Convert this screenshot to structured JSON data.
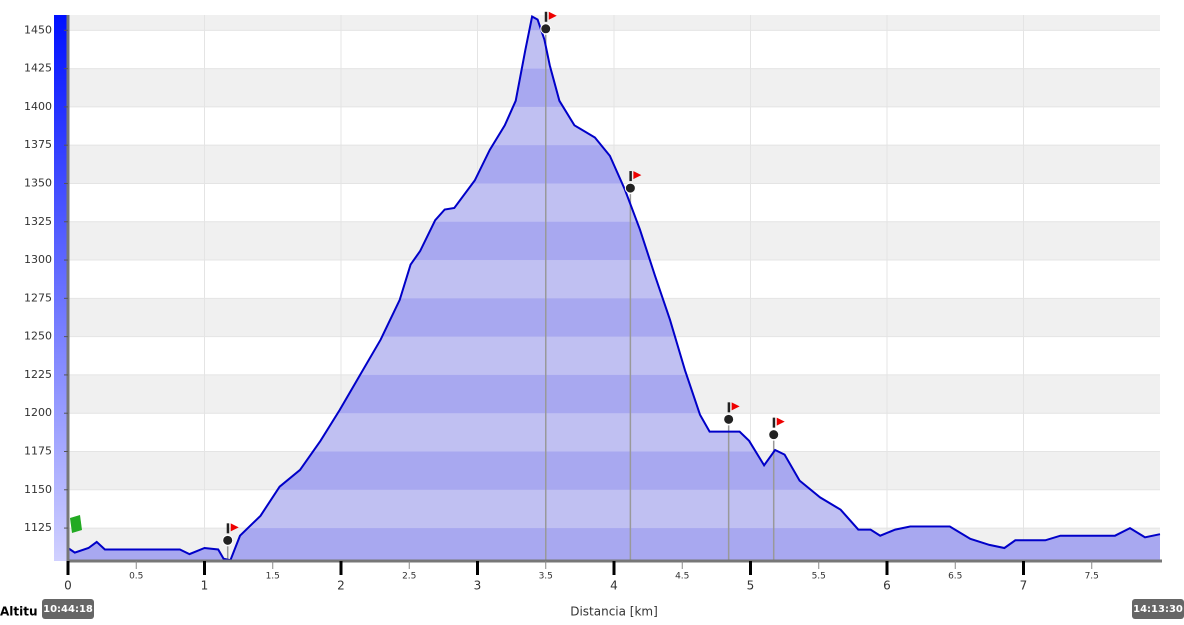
{
  "chart_data": {
    "type": "area",
    "x_label": "Distancia [km]",
    "y_label": "Altitu",
    "start_time": "10:44:18",
    "end_time": "14:13:30",
    "color": "#0000c8",
    "fill": "#c0c0f2",
    "band_fill": "#a8a8f0",
    "xlim": [
      0,
      8
    ],
    "ylim": [
      1103.5,
      1460
    ],
    "xticks": [
      0,
      0.5,
      1,
      1.5,
      2,
      2.5,
      3,
      3.5,
      4,
      4.5,
      5,
      5.5,
      6,
      6.5,
      7,
      7.5
    ],
    "yticks": [
      1125,
      1150,
      1175,
      1200,
      1225,
      1250,
      1275,
      1300,
      1325,
      1350,
      1375,
      1400,
      1425,
      1450
    ],
    "grid": true,
    "x": [
      0,
      0.05,
      0.15,
      0.21,
      0.27,
      0.38,
      0.82,
      0.89,
      1.0,
      1.1,
      1.14,
      1.19,
      1.26,
      1.41,
      1.55,
      1.7,
      1.85,
      1.99,
      2.14,
      2.29,
      2.43,
      2.51,
      2.58,
      2.69,
      2.76,
      2.83,
      2.98,
      3.09,
      3.2,
      3.28,
      3.35,
      3.4,
      3.44,
      3.49,
      3.53,
      3.6,
      3.71,
      3.86,
      3.97,
      4.08,
      4.19,
      4.3,
      4.41,
      4.52,
      4.63,
      4.7,
      4.81,
      4.92,
      4.99,
      5.1,
      5.18,
      5.25,
      5.36,
      5.51,
      5.66,
      5.79,
      5.88,
      5.95,
      6.06,
      6.17,
      6.32,
      6.46,
      6.61,
      6.75,
      6.86,
      6.94,
      7.05,
      7.16,
      7.27,
      7.56,
      7.67,
      7.78,
      7.89,
      8.0
    ],
    "values": [
      1112,
      1109,
      1112,
      1116,
      1111,
      1111,
      1111,
      1108,
      1112,
      1111,
      1105,
      1104,
      1120,
      1133,
      1152,
      1163,
      1182,
      1202,
      1225,
      1248,
      1274,
      1297,
      1306,
      1326,
      1333,
      1334,
      1352,
      1372,
      1388,
      1404,
      1437,
      1459,
      1457,
      1444,
      1427,
      1404,
      1388,
      1380,
      1368,
      1346,
      1320,
      1290,
      1261,
      1228,
      1199,
      1188,
      1188,
      1188,
      1182,
      1166,
      1176,
      1173,
      1156,
      1145,
      1137,
      1124,
      1124,
      1120,
      1124,
      1126,
      1126,
      1126,
      1118,
      1114,
      1112,
      1117,
      1117,
      1117,
      1120,
      1120,
      1120,
      1125,
      1119,
      1121
    ],
    "waypoints": {
      "x": [
        1.17,
        3.5,
        4.12,
        4.84,
        5.17
      ],
      "y": [
        1117,
        1451,
        1347,
        1196,
        1186
      ]
    }
  }
}
